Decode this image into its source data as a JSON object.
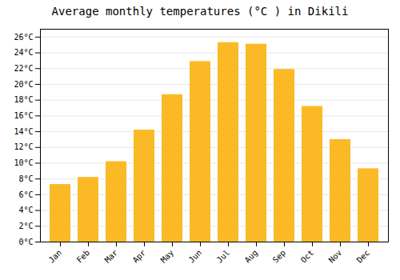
{
  "chart_data": {
    "type": "bar",
    "title": "Average monthly temperatures (°C ) in Dikili",
    "categories": [
      "Jan",
      "Feb",
      "Mar",
      "Apr",
      "May",
      "Jun",
      "Jul",
      "Aug",
      "Sep",
      "Oct",
      "Nov",
      "Dec"
    ],
    "values": [
      7.3,
      8.2,
      10.2,
      14.2,
      18.7,
      22.9,
      25.3,
      25.1,
      21.9,
      17.2,
      13.0,
      9.3
    ],
    "color": "#FBBA25",
    "ylim": [
      0,
      27
    ],
    "yticks": [
      {
        "value": 0,
        "label": "0°C"
      },
      {
        "value": 2,
        "label": "2°C"
      },
      {
        "value": 4,
        "label": "4°C"
      },
      {
        "value": 6,
        "label": "6°C"
      },
      {
        "value": 8,
        "label": "8°C"
      },
      {
        "value": 10,
        "label": "10°C"
      },
      {
        "value": 12,
        "label": "12°C"
      },
      {
        "value": 14,
        "label": "14°C"
      },
      {
        "value": 16,
        "label": "16°C"
      },
      {
        "value": 18,
        "label": "18°C"
      },
      {
        "value": 20,
        "label": "20°C"
      },
      {
        "value": 22,
        "label": "22°C"
      },
      {
        "value": 24,
        "label": "24°C"
      },
      {
        "value": 26,
        "label": "26°C"
      }
    ],
    "grid": true
  }
}
